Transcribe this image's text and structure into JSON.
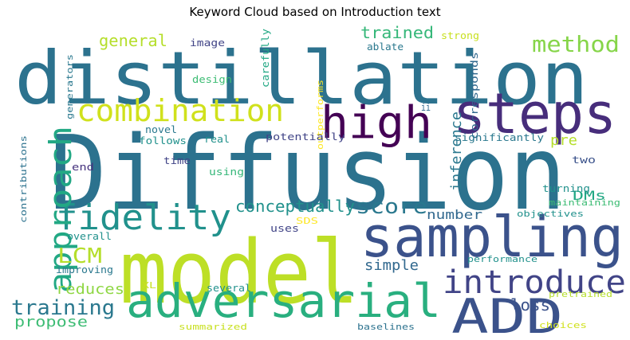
{
  "chart_data": {
    "type": "wordcloud",
    "title": "Keyword Cloud based on Introduction text",
    "colormap": "viridis",
    "background": "#ffffff",
    "words": [
      {
        "text": "Diffusion",
        "color": "#2c728e"
      },
      {
        "text": "distillation",
        "color": "#2c728e"
      },
      {
        "text": "model",
        "color": "#bddf26"
      },
      {
        "text": "sampling",
        "color": "#3b528b"
      },
      {
        "text": "steps",
        "color": "#472d7b"
      },
      {
        "text": "adversarial",
        "color": "#29af7f"
      },
      {
        "text": "high",
        "color": "#440154"
      },
      {
        "text": "ADD",
        "color": "#3b528b"
      },
      {
        "text": "combination",
        "color": "#d0e11c"
      },
      {
        "text": "fidelity",
        "color": "#21918c"
      },
      {
        "text": "approach",
        "color": "#22a884"
      },
      {
        "text": "introduce",
        "color": "#414487"
      },
      {
        "text": "method",
        "color": "#86d549"
      },
      {
        "text": "training",
        "color": "#2a788e"
      },
      {
        "text": "score",
        "color": "#2a788e"
      },
      {
        "text": "conceptually",
        "color": "#21918c"
      },
      {
        "text": "LCM",
        "color": "#b5de2b"
      },
      {
        "text": "trained",
        "color": "#35b779"
      },
      {
        "text": "general",
        "color": "#b5de2b"
      },
      {
        "text": "inference",
        "color": "#2a788e"
      },
      {
        "text": "loss",
        "color": "#3b528b"
      },
      {
        "text": "propose",
        "color": "#3dbc74"
      },
      {
        "text": "reduces",
        "color": "#8fd744"
      },
      {
        "text": "number",
        "color": "#31688e"
      },
      {
        "text": "simple",
        "color": "#31688e"
      },
      {
        "text": "pre",
        "color": "#b5de2b"
      },
      {
        "text": "DMs",
        "color": "#22a884"
      },
      {
        "text": "image",
        "color": "#414487"
      },
      {
        "text": "carefully",
        "color": "#22a884"
      },
      {
        "text": "ablate",
        "color": "#2a788e"
      },
      {
        "text": "strong",
        "color": "#c8e020"
      },
      {
        "text": "generators",
        "color": "#2a788e"
      },
      {
        "text": "design",
        "color": "#3dbc74"
      },
      {
        "text": "outperforms",
        "color": "#fde725"
      },
      {
        "text": "corresponds",
        "color": "#31688e"
      },
      {
        "text": "ii",
        "color": "#31688e"
      },
      {
        "text": "novel",
        "color": "#2a788e"
      },
      {
        "text": "follows",
        "color": "#21918c"
      },
      {
        "text": "real",
        "color": "#21918c"
      },
      {
        "text": "potentially",
        "color": "#414487"
      },
      {
        "text": "significantly",
        "color": "#2a788e"
      },
      {
        "text": "contributions",
        "color": "#2c728e"
      },
      {
        "text": "time",
        "color": "#414487"
      },
      {
        "text": "end",
        "color": "#46337e"
      },
      {
        "text": "using",
        "color": "#35b779"
      },
      {
        "text": "two",
        "color": "#3b528b"
      },
      {
        "text": "turning",
        "color": "#21918c"
      },
      {
        "text": "maintaining",
        "color": "#3dbc74"
      },
      {
        "text": "objectives",
        "color": "#21918c"
      },
      {
        "text": "SDS",
        "color": "#fde725"
      },
      {
        "text": "overall",
        "color": "#21918c"
      },
      {
        "text": "uses",
        "color": "#414487"
      },
      {
        "text": "improving",
        "color": "#2a788e"
      },
      {
        "text": "performance",
        "color": "#21918c"
      },
      {
        "text": "XL",
        "color": "#c8e020"
      },
      {
        "text": "several",
        "color": "#21918c"
      },
      {
        "text": "pretrained",
        "color": "#b5de2b"
      },
      {
        "text": "summarized",
        "color": "#c8e020"
      },
      {
        "text": "baselines",
        "color": "#2c728e"
      },
      {
        "text": "choices",
        "color": "#d0e11c"
      }
    ]
  }
}
